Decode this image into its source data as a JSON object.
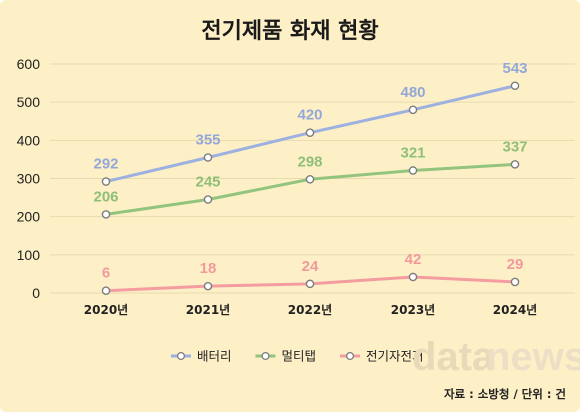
{
  "chart_data": {
    "type": "line",
    "title": "전기제품 화재 현황",
    "categories": [
      "2020년",
      "2021년",
      "2022년",
      "2023년",
      "2024년"
    ],
    "ylim": [
      0,
      600
    ],
    "yticks": [
      0,
      100,
      200,
      300,
      400,
      500,
      600
    ],
    "grid": true,
    "legend_position": "bottom",
    "series": [
      {
        "name": "배터리",
        "values": [
          292,
          355,
          420,
          480,
          543
        ],
        "color": "#9db1e0",
        "label_color": "#93a8d8"
      },
      {
        "name": "멀티탭",
        "values": [
          206,
          245,
          298,
          321,
          337
        ],
        "color": "#93c47d",
        "label_color": "#8fbf78"
      },
      {
        "name": "전기자전거",
        "values": [
          6,
          18,
          24,
          42,
          29
        ],
        "color": "#f49ca0",
        "label_color": "#f2999d"
      }
    ]
  },
  "brand": {
    "part1": "data",
    "part2": "news"
  },
  "source": "자료 : 소방청 / 단위 : 건"
}
